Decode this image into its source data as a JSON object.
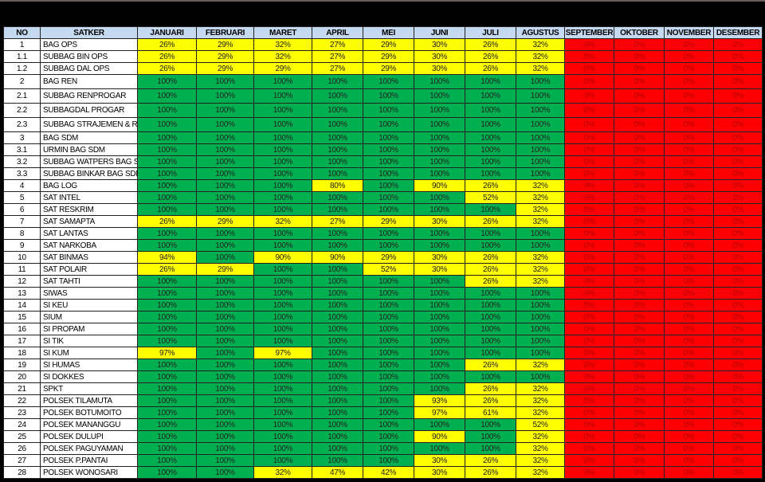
{
  "colors": {
    "full": "#00b050",
    "partial": "#ffff00",
    "empty": "#ff0000",
    "header": "#c5d9f1"
  },
  "headers": [
    "NO",
    "SATKER",
    "JANUARI",
    "FEBRUARI",
    "MARET",
    "APRIL",
    "MEI",
    "JUNI",
    "JULI",
    "AGUSTUS",
    "SEPTEMBER",
    "OKTOBER",
    "NOVEMBER",
    "DESEMBER"
  ],
  "rows": [
    {
      "no": "1",
      "satker": "BAG OPS",
      "values": [
        "26%",
        "29%",
        "32%",
        "27%",
        "29%",
        "30%",
        "26%",
        "32%",
        "0%",
        "0%",
        "0%",
        "0%"
      ]
    },
    {
      "no": "1.1",
      "satker": "SUBBAG BIN OPS",
      "values": [
        "26%",
        "29%",
        "32%",
        "27%",
        "29%",
        "30%",
        "26%",
        "32%",
        "0%",
        "0%",
        "0%",
        "0%"
      ]
    },
    {
      "no": "1.2",
      "satker": "SUBBAG DAL OPS",
      "values": [
        "26%",
        "29%",
        "29%",
        "27%",
        "29%",
        "30%",
        "26%",
        "32%",
        "0%",
        "0%",
        "0%",
        "0%"
      ]
    },
    {
      "no": "2",
      "satker": "BAG REN",
      "tall": true,
      "values": [
        "100%",
        "100%",
        "100%",
        "100%",
        "100%",
        "100%",
        "100%",
        "100%",
        "0%",
        "0%",
        "0%",
        "0%"
      ]
    },
    {
      "no": "2.1",
      "satker": "SUBBAG RENPROGAR",
      "tall": true,
      "values": [
        "100%",
        "100%",
        "100%",
        "100%",
        "100%",
        "100%",
        "100%",
        "100%",
        "0%",
        "0%",
        "0%",
        "0%"
      ]
    },
    {
      "no": "2.2",
      "satker": "SUBBAGDAL PROGAR",
      "tall": true,
      "values": [
        "100%",
        "100%",
        "100%",
        "100%",
        "100%",
        "100%",
        "100%",
        "100%",
        "0%",
        "0%",
        "0%",
        "0%"
      ]
    },
    {
      "no": "2.3",
      "satker": "SUBBAG STRAJEMEN & RB",
      "tall": true,
      "values": [
        "100%",
        "100%",
        "100%",
        "100%",
        "100%",
        "100%",
        "100%",
        "100%",
        "0%",
        "0%",
        "0%",
        "0%"
      ]
    },
    {
      "no": "3",
      "satker": "BAG SDM",
      "values": [
        "100%",
        "100%",
        "100%",
        "100%",
        "100%",
        "100%",
        "100%",
        "100%",
        "0%",
        "0%",
        "0%",
        "0%"
      ]
    },
    {
      "no": "3.1",
      "satker": "URMIN BAG SDM",
      "values": [
        "100%",
        "100%",
        "100%",
        "100%",
        "100%",
        "100%",
        "100%",
        "100%",
        "0%",
        "0%",
        "0%",
        "0%"
      ]
    },
    {
      "no": "3.2",
      "satker": "SUBBAG WATPERS BAG SDM",
      "values": [
        "100%",
        "100%",
        "100%",
        "100%",
        "100%",
        "100%",
        "100%",
        "100%",
        "0%",
        "0%",
        "0%",
        "0%"
      ]
    },
    {
      "no": "3.3",
      "satker": "SUBBAG BINKAR BAG SDM",
      "values": [
        "100%",
        "100%",
        "100%",
        "100%",
        "100%",
        "100%",
        "100%",
        "100%",
        "0%",
        "0%",
        "0%",
        "0%"
      ]
    },
    {
      "no": "4",
      "satker": "BAG LOG",
      "values": [
        "100%",
        "100%",
        "100%",
        "80%",
        "100%",
        "90%",
        "26%",
        "32%",
        "0%",
        "0%",
        "0%",
        "0%"
      ]
    },
    {
      "no": "5",
      "satker": "SAT INTEL",
      "values": [
        "100%",
        "100%",
        "100%",
        "100%",
        "100%",
        "100%",
        "52%",
        "32%",
        "0%",
        "0%",
        "0%",
        "0%"
      ]
    },
    {
      "no": "6",
      "satker": "SAT RESKRIM",
      "values": [
        "100%",
        "100%",
        "100%",
        "100%",
        "100%",
        "100%",
        "100%",
        "32%",
        "0%",
        "0%",
        "0%",
        "0%"
      ]
    },
    {
      "no": "7",
      "satker": "SAT SAMAPTA",
      "values": [
        "26%",
        "29%",
        "32%",
        "27%",
        "29%",
        "30%",
        "26%",
        "32%",
        "0%",
        "0%",
        "0%",
        "0%"
      ]
    },
    {
      "no": "8",
      "satker": "SAT LANTAS",
      "values": [
        "100%",
        "100%",
        "100%",
        "100%",
        "100%",
        "100%",
        "100%",
        "100%",
        "0%",
        "0%",
        "0%",
        "0%"
      ]
    },
    {
      "no": "9",
      "satker": "SAT NARKOBA",
      "values": [
        "100%",
        "100%",
        "100%",
        "100%",
        "100%",
        "100%",
        "100%",
        "100%",
        "0%",
        "0%",
        "0%",
        "0%"
      ]
    },
    {
      "no": "10",
      "satker": "SAT BINMAS",
      "values": [
        "94%",
        "100%",
        "90%",
        "90%",
        "29%",
        "30%",
        "26%",
        "32%",
        "0%",
        "0%",
        "0%",
        "0%"
      ]
    },
    {
      "no": "11",
      "satker": "SAT POLAIR",
      "values": [
        "26%",
        "29%",
        "100%",
        "100%",
        "52%",
        "30%",
        "26%",
        "32%",
        "0%",
        "0%",
        "0%",
        "0%"
      ]
    },
    {
      "no": "12",
      "satker": "SAT TAHTI",
      "values": [
        "100%",
        "100%",
        "100%",
        "100%",
        "100%",
        "100%",
        "26%",
        "32%",
        "0%",
        "0%",
        "0%",
        "0%"
      ]
    },
    {
      "no": "13",
      "satker": "SIWAS",
      "values": [
        "100%",
        "100%",
        "100%",
        "100%",
        "100%",
        "100%",
        "100%",
        "100%",
        "0%",
        "0%",
        "0%",
        "0%"
      ]
    },
    {
      "no": "14",
      "satker": "SI KEU",
      "values": [
        "100%",
        "100%",
        "100%",
        "100%",
        "100%",
        "100%",
        "100%",
        "100%",
        "0%",
        "0%",
        "0%",
        "0%"
      ]
    },
    {
      "no": "15",
      "satker": "SIUM",
      "values": [
        "100%",
        "100%",
        "100%",
        "100%",
        "100%",
        "100%",
        "100%",
        "100%",
        "0%",
        "0%",
        "0%",
        "0%"
      ]
    },
    {
      "no": "16",
      "satker": "SI PROPAM",
      "values": [
        "100%",
        "100%",
        "100%",
        "100%",
        "100%",
        "100%",
        "100%",
        "100%",
        "0%",
        "0%",
        "0%",
        "0%"
      ]
    },
    {
      "no": "17",
      "satker": "SI TIK",
      "values": [
        "100%",
        "100%",
        "100%",
        "100%",
        "100%",
        "100%",
        "100%",
        "100%",
        "0%",
        "0%",
        "0%",
        "0%"
      ]
    },
    {
      "no": "18",
      "satker": "SI KUM",
      "values": [
        "97%",
        "100%",
        "97%",
        "100%",
        "100%",
        "100%",
        "100%",
        "100%",
        "0%",
        "0%",
        "0%",
        "0%"
      ]
    },
    {
      "no": "19",
      "satker": "SI HUMAS",
      "values": [
        "100%",
        "100%",
        "100%",
        "100%",
        "100%",
        "100%",
        "26%",
        "32%",
        "0%",
        "0%",
        "0%",
        "0%"
      ]
    },
    {
      "no": "20",
      "satker": "SI DOKKES",
      "values": [
        "100%",
        "100%",
        "100%",
        "100%",
        "100%",
        "100%",
        "100%",
        "100%",
        "0%",
        "0%",
        "0%",
        "0%"
      ]
    },
    {
      "no": "21",
      "satker": "SPKT",
      "values": [
        "100%",
        "100%",
        "100%",
        "100%",
        "100%",
        "100%",
        "26%",
        "32%",
        "0%",
        "0%",
        "0%",
        "0%"
      ]
    },
    {
      "no": "22",
      "satker": "POLSEK TILAMUTA",
      "values": [
        "100%",
        "100%",
        "100%",
        "100%",
        "100%",
        "93%",
        "26%",
        "32%",
        "0%",
        "0%",
        "0%",
        "0%"
      ]
    },
    {
      "no": "23",
      "satker": "POLSEK BOTUMOITO",
      "values": [
        "100%",
        "100%",
        "100%",
        "100%",
        "100%",
        "97%",
        "61%",
        "32%",
        "0%",
        "0%",
        "0%",
        "0%"
      ]
    },
    {
      "no": "24",
      "satker": "POLSEK MANANGGU",
      "values": [
        "100%",
        "100%",
        "100%",
        "100%",
        "100%",
        "100%",
        "100%",
        "52%",
        "0%",
        "0%",
        "0%",
        "0%"
      ]
    },
    {
      "no": "25",
      "satker": "POLSEK DULUPI",
      "values": [
        "100%",
        "100%",
        "100%",
        "100%",
        "100%",
        "90%",
        "100%",
        "32%",
        "0%",
        "0%",
        "0%",
        "0%"
      ]
    },
    {
      "no": "26",
      "satker": "POLSEK PAGUYAMAN",
      "values": [
        "100%",
        "100%",
        "100%",
        "100%",
        "100%",
        "100%",
        "100%",
        "32%",
        "0%",
        "0%",
        "0%",
        "0%"
      ]
    },
    {
      "no": "27",
      "satker": "POLSEK P.PANTAI",
      "values": [
        "100%",
        "100%",
        "100%",
        "100%",
        "100%",
        "30%",
        "26%",
        "32%",
        "0%",
        "0%",
        "0%",
        "0%"
      ]
    },
    {
      "no": "28",
      "satker": "POLSEK WONOSARI",
      "values": [
        "100%",
        "100%",
        "32%",
        "47%",
        "42%",
        "30%",
        "26%",
        "32%",
        "0%",
        "0%",
        "0%",
        "0%"
      ]
    }
  ]
}
